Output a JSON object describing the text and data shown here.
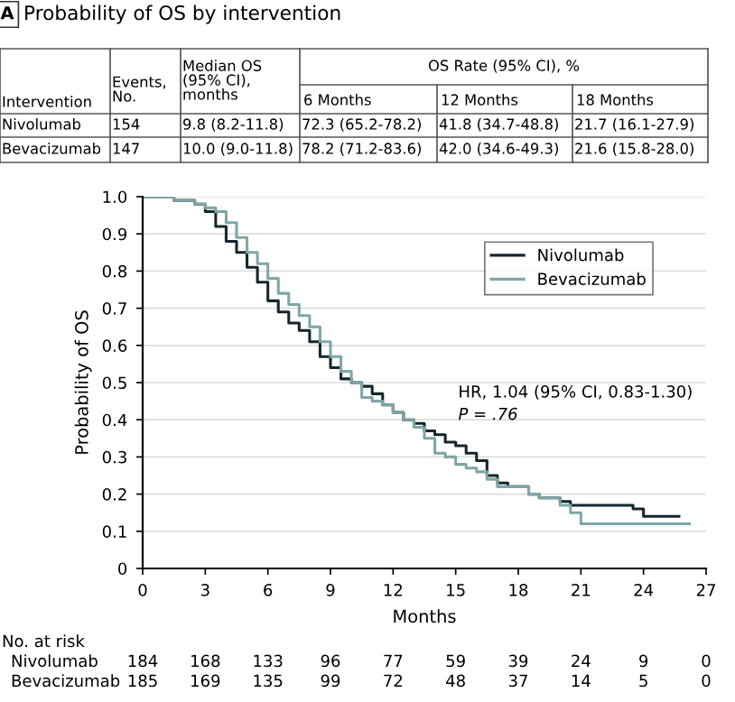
{
  "chart_data": [
    {
      "type": "other",
      "title": "Probability of OS by intervention",
      "annotations": [
        "A",
        "Intervention",
        "Events, No.",
        "Median OS (95% CI), months",
        "OS Rate (95% CI), %",
        "6 Months",
        "12 Months",
        "18 Months",
        "Nivolumab",
        "154",
        "9.8 (8.2-11.8)",
        "72.3 (65.2-78.2)",
        "41.8 (34.7-48.8)",
        "21.7 (16.1-27.9)",
        "Bevacizumab",
        "147",
        "10.0 (9.0-11.8)",
        "78.2 (71.2-83.6)",
        "42.0 (34.6-49.3)",
        "21.6 (15.8-28.0)"
      ]
    },
    {
      "type": "step",
      "xlabel": "Months",
      "ylabel": "Probability of OS",
      "xlim": [
        0,
        27
      ],
      "xticks": [
        0,
        3,
        6,
        9,
        12,
        15,
        18,
        21,
        24,
        27
      ],
      "ylim": [
        0,
        1.0
      ],
      "yticks": [
        0,
        0.1,
        0.2,
        0.3,
        0.4,
        0.5,
        0.6,
        0.7,
        0.8,
        0.9,
        {
          "value": 1,
          "label": "1.0"
        }
      ],
      "grid": "y",
      "legend": "top right",
      "series": [
        {
          "name": "Nivolumab",
          "color": "#16262e",
          "x": [
            0,
            1.5,
            2.5,
            3.0,
            3.5,
            4.0,
            4.5,
            5.0,
            5.5,
            6.0,
            6.5,
            7.0,
            7.5,
            8.0,
            8.5,
            9.0,
            9.5,
            10.0,
            10.5,
            11.0,
            11.5,
            12.0,
            12.5,
            13.0,
            13.5,
            14.0,
            14.5,
            15.0,
            15.5,
            16.0,
            16.5,
            17.0,
            17.5,
            18.5,
            19.0,
            20.0,
            20.5,
            23.0,
            23.5,
            24.0,
            25.7
          ],
          "values": [
            1.0,
            0.99,
            0.98,
            0.96,
            0.92,
            0.88,
            0.85,
            0.81,
            0.77,
            0.72,
            0.69,
            0.66,
            0.64,
            0.61,
            0.57,
            0.54,
            0.51,
            0.5,
            0.49,
            0.47,
            0.44,
            0.42,
            0.4,
            0.39,
            0.37,
            0.36,
            0.34,
            0.33,
            0.31,
            0.29,
            0.25,
            0.23,
            0.22,
            0.2,
            0.19,
            0.18,
            0.17,
            0.17,
            0.16,
            0.14,
            0.14
          ]
        },
        {
          "name": "Bevacizumab",
          "color": "#7fa6a8",
          "x": [
            0,
            1.5,
            2.5,
            3.0,
            3.5,
            4.0,
            4.5,
            5.0,
            5.5,
            6.0,
            6.5,
            7.0,
            7.5,
            8.0,
            8.5,
            9.0,
            9.5,
            10.0,
            10.5,
            11.0,
            11.5,
            12.0,
            12.5,
            13.0,
            13.5,
            14.0,
            14.5,
            15.0,
            15.5,
            16.0,
            16.5,
            17.0,
            18.5,
            19.0,
            20.0,
            20.5,
            21.0,
            26.2
          ],
          "values": [
            1.0,
            0.99,
            0.98,
            0.97,
            0.96,
            0.93,
            0.89,
            0.85,
            0.82,
            0.78,
            0.74,
            0.71,
            0.68,
            0.65,
            0.61,
            0.57,
            0.53,
            0.5,
            0.46,
            0.45,
            0.44,
            0.42,
            0.4,
            0.38,
            0.35,
            0.31,
            0.3,
            0.28,
            0.27,
            0.26,
            0.24,
            0.22,
            0.2,
            0.19,
            0.17,
            0.15,
            0.12,
            0.12
          ]
        }
      ],
      "annotations": [
        "HR, 1.04 (95% CI, 0.83-1.30)",
        "P = .76",
        "No. at risk",
        "Nivolumab",
        "184",
        "168",
        "133",
        "96",
        "77",
        "59",
        "39",
        "24",
        "9",
        "0",
        "Bevacizumab",
        "185",
        "169",
        "135",
        "99",
        "72",
        "48",
        "37",
        "14",
        "5",
        "0"
      ]
    }
  ]
}
